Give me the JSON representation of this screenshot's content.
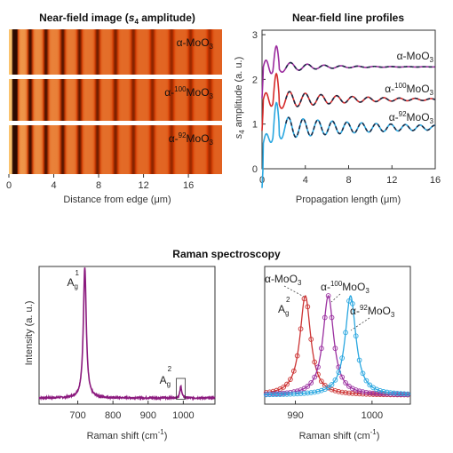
{
  "chart_data": [
    {
      "panel": "near-field-image",
      "type": "heatmap",
      "title": "Near-field image (s4 amplitude)",
      "title_parts": {
        "pre": "Near-field image (",
        "var": "s",
        "sub": "4",
        "post": " amplitude)"
      },
      "xlabel": "Distance from edge (μm)",
      "xlim": [
        0,
        19
      ],
      "xticks": [
        "0",
        "4",
        "8",
        "12",
        "16"
      ],
      "rows": [
        {
          "name": "α-MoO3",
          "pre": "α-MoO",
          "sup": "",
          "sub": "3"
        },
        {
          "name": "α-100MoO3",
          "pre": "α-",
          "sup": "100",
          "mid": "MoO",
          "sub": "3"
        },
        {
          "name": "α-92MoO3",
          "pre": "α-",
          "sup": "92",
          "mid": "MoO",
          "sub": "3"
        }
      ],
      "fringe_positions_um": [
        0.6,
        1.9,
        3.3,
        4.8,
        6.3,
        7.9,
        9.5,
        11.1,
        12.8,
        14.5,
        16.2,
        17.9
      ],
      "colors": {
        "low": "#1a0500",
        "mid": "#d63a00",
        "high": "#ffd27a"
      }
    },
    {
      "panel": "near-field-profiles",
      "type": "line",
      "title": "Near-field line profiles",
      "xlabel": "Propagation length (μm)",
      "ylabel": "s4 amplitude (a. u.)",
      "ylabel_parts": {
        "var": "s",
        "sub": "4",
        "post": " amplitude (a. u.)"
      },
      "xlim": [
        0,
        16
      ],
      "ylim": [
        0,
        3.1
      ],
      "xticks": [
        "0",
        "4",
        "8",
        "12",
        "16"
      ],
      "yticks": [
        "0",
        "1",
        "2",
        "3"
      ],
      "series": [
        {
          "name": "α-MoO3",
          "label_pre": "α-MoO",
          "label_sup": "",
          "label_sub": "3",
          "color": "#9b2c9e",
          "baseline": 2.28,
          "amp": 0.2,
          "period": 1.55,
          "decay": 3.5
        },
        {
          "name": "α-100MoO3",
          "label_pre": "α-",
          "label_sup": "100",
          "label_mid": "MoO",
          "label_sub": "3",
          "color": "#d62a2a",
          "baseline": 1.55,
          "amp": 0.27,
          "period": 1.45,
          "decay": 6.0
        },
        {
          "name": "α-92MoO3",
          "label_pre": "α-",
          "label_sup": "92",
          "label_mid": "MoO",
          "label_sub": "3",
          "color": "#2aa7e0",
          "baseline": 0.92,
          "amp": 0.3,
          "period": 1.35,
          "decay": 9.0
        }
      ],
      "fit_color": "#1a2a44"
    },
    {
      "panel": "raman-full",
      "type": "line",
      "section_title": "Raman spectroscopy",
      "xlabel": "Raman shift (cm-1)",
      "xlabel_parts": {
        "pre": "Raman shift (cm",
        "sup": "-1",
        "post": ")"
      },
      "ylabel": "Intensity (a. u.)",
      "xlim": [
        590,
        1090
      ],
      "xticks": [
        "700",
        "800",
        "900",
        "1000"
      ],
      "peaks": [
        {
          "label_pre": "A",
          "label_sub": "g",
          "label_sup": "1",
          "x": 720,
          "height": 1.0,
          "width": 5
        },
        {
          "label_pre": "A",
          "label_sub": "g",
          "label_sup": "2",
          "x": 993,
          "height": 0.09,
          "width": 3
        }
      ],
      "color": "#8b1a7e"
    },
    {
      "panel": "raman-zoom",
      "type": "line",
      "xlabel": "Raman shift (cm-1)",
      "xlabel_parts": {
        "pre": "Raman shift (cm",
        "sup": "-1",
        "post": ")"
      },
      "xlim": [
        986,
        1005
      ],
      "xticks": [
        "990",
        "1000"
      ],
      "peak_label": {
        "pre": "A",
        "sub": "g",
        "sup": "2"
      },
      "series": [
        {
          "name": "α-MoO3",
          "label_pre": "α-MoO",
          "label_sup": "",
          "label_sub": "3",
          "center": 991.3,
          "color": "#cc3333"
        },
        {
          "name": "α-100MoO3",
          "label_pre": "α-",
          "label_sup": "100",
          "label_mid": "MoO",
          "label_sub": "3",
          "center": 994.3,
          "color": "#9b30a0"
        },
        {
          "name": "α-92MoO3",
          "label_pre": "α-",
          "label_sup": "92",
          "label_mid": "MoO",
          "label_sub": "3",
          "center": 997.2,
          "color": "#2aa7e0"
        }
      ]
    }
  ]
}
